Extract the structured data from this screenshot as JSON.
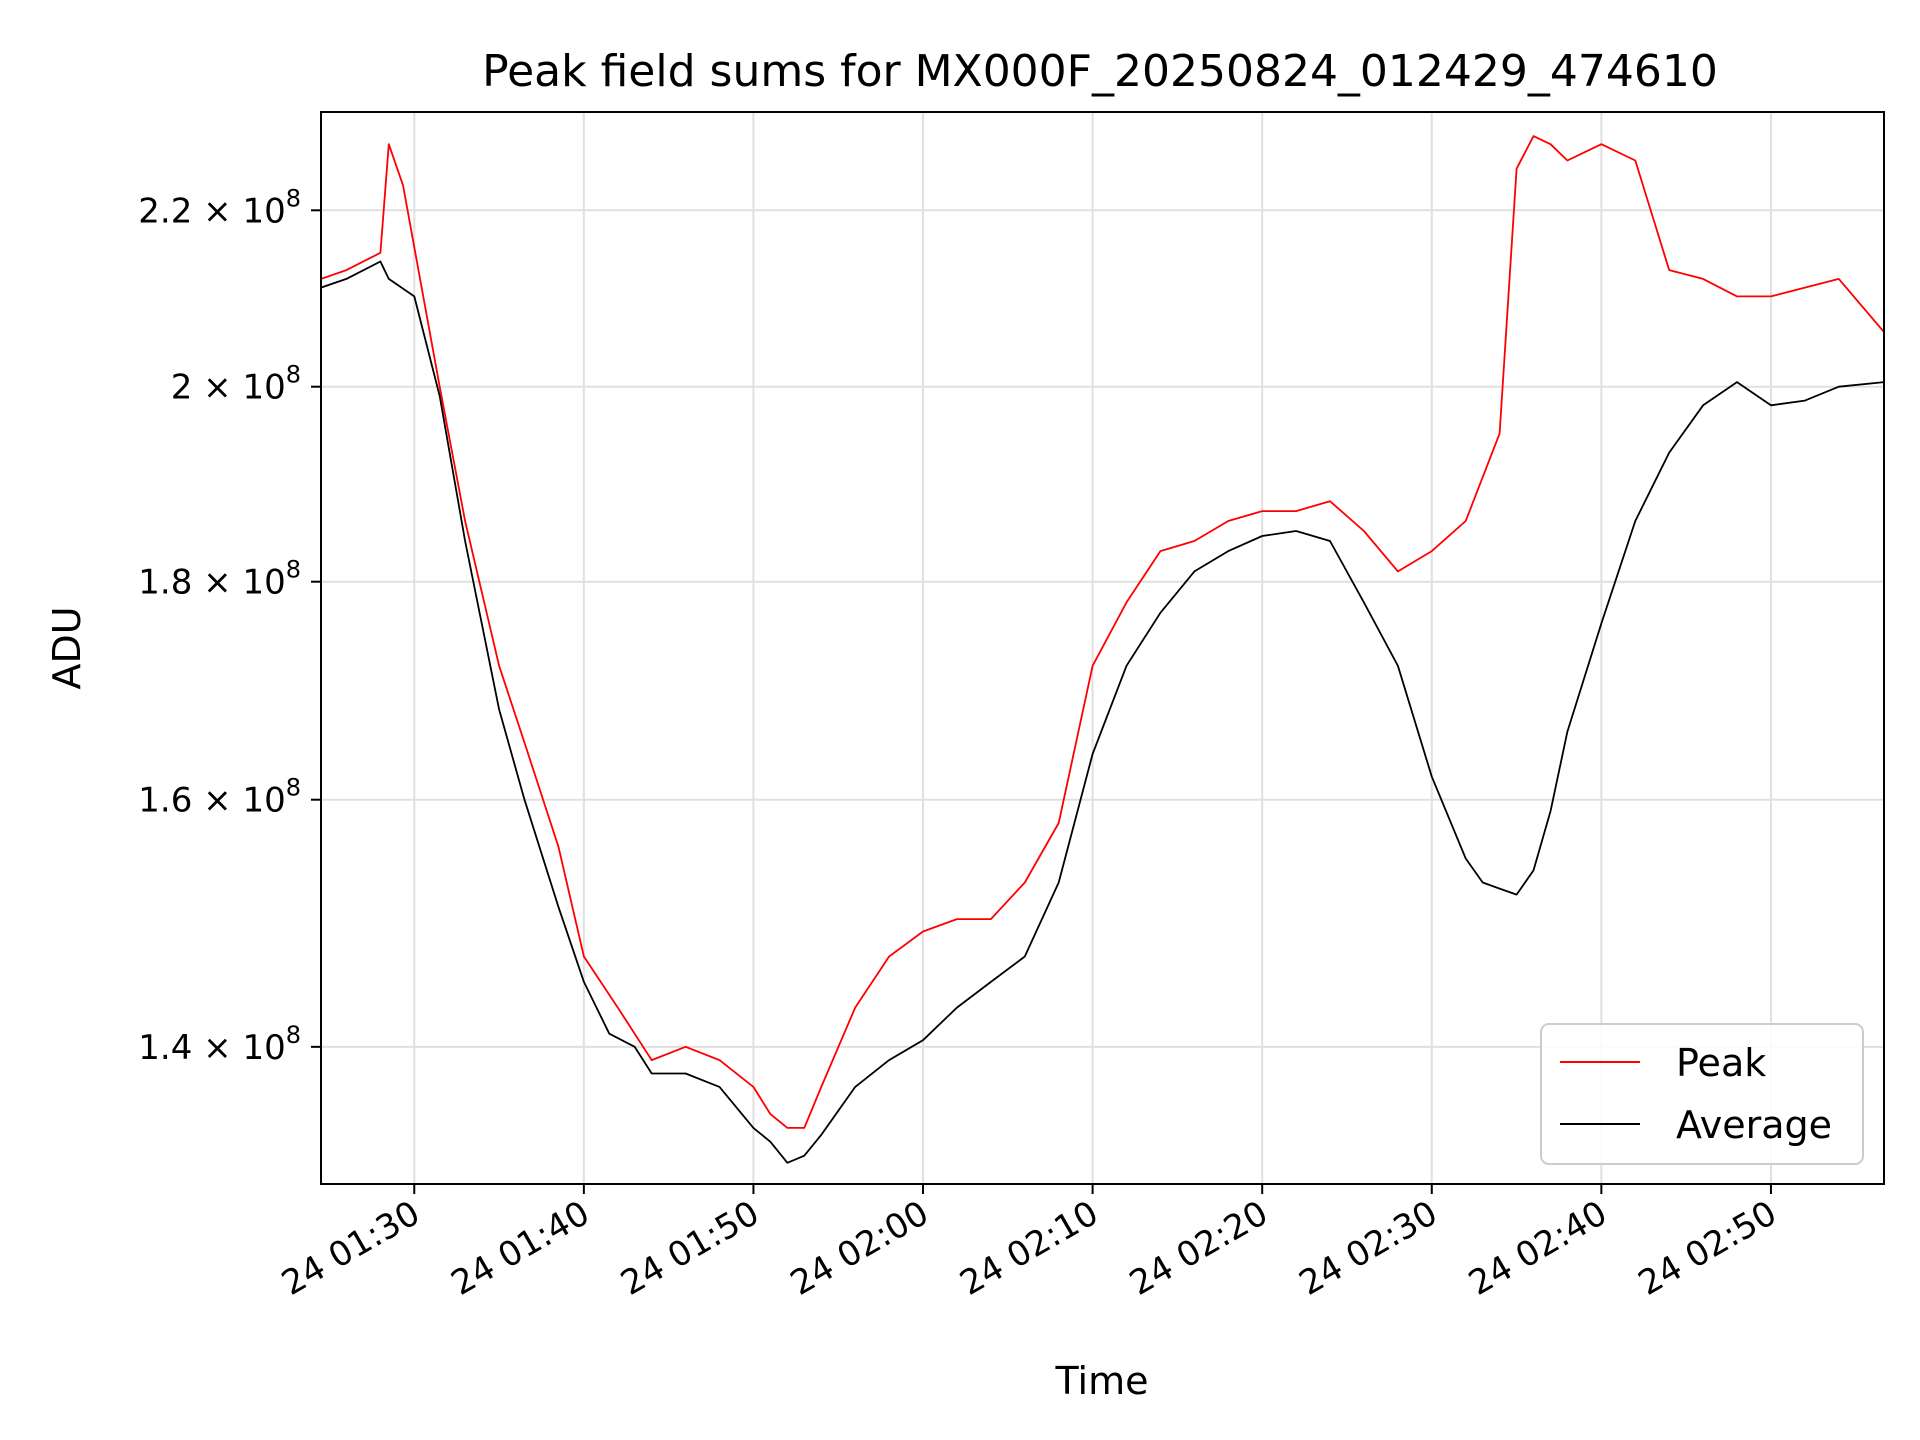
{
  "chart_data": {
    "type": "line",
    "title": "Peak field sums for MX000F_20250824_012429_474610",
    "xlabel": "Time",
    "ylabel": "ADU",
    "y_scale": "log",
    "xlim": [
      "01:24:30",
      "02:56:40"
    ],
    "ylim": [
      130000000,
      232000000
    ],
    "grid": true,
    "legend_position": "lower right",
    "x_ticks": [
      "24 01:30",
      "24 01:40",
      "24 01:50",
      "24 02:00",
      "24 02:10",
      "24 02:20",
      "24 02:30",
      "24 02:40",
      "24 02:50"
    ],
    "y_ticks": [
      {
        "value": 140000000,
        "mantissa": "1.4"
      },
      {
        "value": 160000000,
        "mantissa": "1.6"
      },
      {
        "value": 180000000,
        "mantissa": "1.8"
      },
      {
        "value": 200000000,
        "mantissa": "2"
      },
      {
        "value": 220000000,
        "mantissa": "2.2"
      }
    ],
    "y_tick_base": "10",
    "y_tick_exponent": "8",
    "series": [
      {
        "name": "Peak",
        "color": "#ff0000",
        "x": [
          "01:24:30",
          "01:26:00",
          "01:28:00",
          "01:28:30",
          "01:29:20",
          "01:31:30",
          "01:33:00",
          "01:35:00",
          "01:36:30",
          "01:38:30",
          "01:40:00",
          "01:42:00",
          "01:44:00",
          "01:46:00",
          "01:48:00",
          "01:50:00",
          "01:51:00",
          "01:52:00",
          "01:53:00",
          "01:54:00",
          "01:56:00",
          "01:58:00",
          "02:00:00",
          "02:02:00",
          "02:04:00",
          "02:06:00",
          "02:08:00",
          "02:10:00",
          "02:12:00",
          "02:14:00",
          "02:16:00",
          "02:18:00",
          "02:20:00",
          "02:22:00",
          "02:24:00",
          "02:26:00",
          "02:28:00",
          "02:30:00",
          "02:32:00",
          "02:34:00",
          "02:35:00",
          "02:36:00",
          "02:37:00",
          "02:38:00",
          "02:39:00",
          "02:40:00",
          "02:42:00",
          "02:44:00",
          "02:46:00",
          "02:48:00",
          "02:50:00",
          "02:52:00",
          "02:54:00",
          "02:56:40"
        ],
        "y": [
          212000000,
          213000000,
          215000000,
          228000000,
          223000000,
          200000000,
          186000000,
          172000000,
          165000000,
          156000000,
          147000000,
          143000000,
          139000000,
          140000000,
          139000000,
          137000000,
          135000000,
          134000000,
          134000000,
          137000000,
          143000000,
          147000000,
          149000000,
          150000000,
          150000000,
          153000000,
          158000000,
          172000000,
          178000000,
          183000000,
          184000000,
          186000000,
          187000000,
          187000000,
          188000000,
          185000000,
          181000000,
          183000000,
          186000000,
          195000000,
          225000000,
          229000000,
          228000000,
          226000000,
          227000000,
          228000000,
          226000000,
          213000000,
          212000000,
          210000000,
          210000000,
          211000000,
          212000000,
          206000000
        ]
      },
      {
        "name": "Average",
        "color": "#000000",
        "x": [
          "01:24:30",
          "01:26:00",
          "01:28:00",
          "01:28:30",
          "01:30:00",
          "01:31:30",
          "01:33:00",
          "01:35:00",
          "01:36:30",
          "01:38:30",
          "01:40:00",
          "01:41:30",
          "01:43:00",
          "01:44:00",
          "01:46:00",
          "01:48:00",
          "01:50:00",
          "01:51:00",
          "01:52:00",
          "01:53:00",
          "01:54:00",
          "01:56:00",
          "01:58:00",
          "02:00:00",
          "02:02:00",
          "02:04:00",
          "02:06:00",
          "02:08:00",
          "02:10:00",
          "02:12:00",
          "02:14:00",
          "02:16:00",
          "02:18:00",
          "02:20:00",
          "02:22:00",
          "02:24:00",
          "02:26:00",
          "02:28:00",
          "02:30:00",
          "02:32:00",
          "02:33:00",
          "02:34:00",
          "02:35:00",
          "02:36:00",
          "02:37:00",
          "02:38:00",
          "02:40:00",
          "02:42:00",
          "02:44:00",
          "02:46:00",
          "02:48:00",
          "02:50:00",
          "02:52:00",
          "02:54:00",
          "02:56:40"
        ],
        "y": [
          211000000,
          212000000,
          214000000,
          212000000,
          210000000,
          199000000,
          184000000,
          168000000,
          160000000,
          151000000,
          145000000,
          141000000,
          140000000,
          138000000,
          138000000,
          137000000,
          134000000,
          133000000,
          131500000,
          132000000,
          133500000,
          137000000,
          139000000,
          140500000,
          143000000,
          145000000,
          147000000,
          153000000,
          164000000,
          172000000,
          177000000,
          181000000,
          183000000,
          184500000,
          185000000,
          184000000,
          178000000,
          172000000,
          162000000,
          155000000,
          153000000,
          152500000,
          152000000,
          154000000,
          159000000,
          166000000,
          176000000,
          186000000,
          193000000,
          198000000,
          200500000,
          198000000,
          198500000,
          200000000,
          200500000
        ]
      }
    ]
  }
}
